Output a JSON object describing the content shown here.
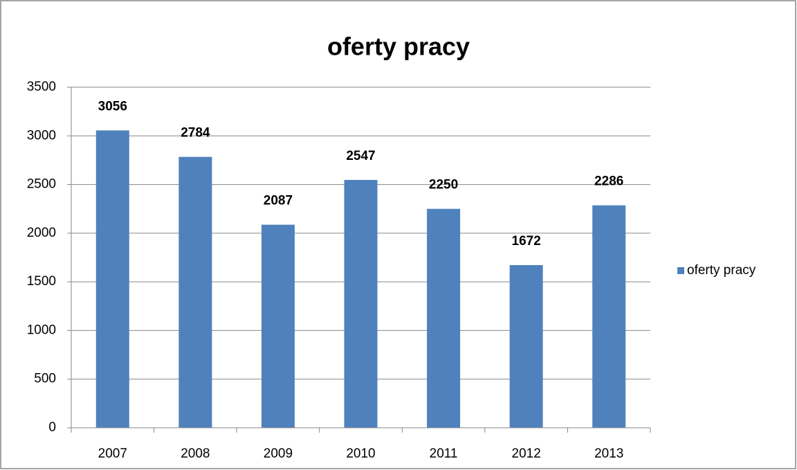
{
  "chart_data": {
    "type": "bar",
    "title": "oferty pracy",
    "categories": [
      "2007",
      "2008",
      "2009",
      "2010",
      "2011",
      "2012",
      "2013"
    ],
    "series": [
      {
        "name": "oferty pracy",
        "color": "#4f81bd",
        "values": [
          3056,
          2784,
          2087,
          2547,
          2250,
          1672,
          2286
        ]
      }
    ],
    "ylim": [
      0,
      3500
    ],
    "yticks": [
      0,
      500,
      1000,
      1500,
      2000,
      2500,
      3000,
      3500
    ],
    "grid": true,
    "legend": "right"
  }
}
